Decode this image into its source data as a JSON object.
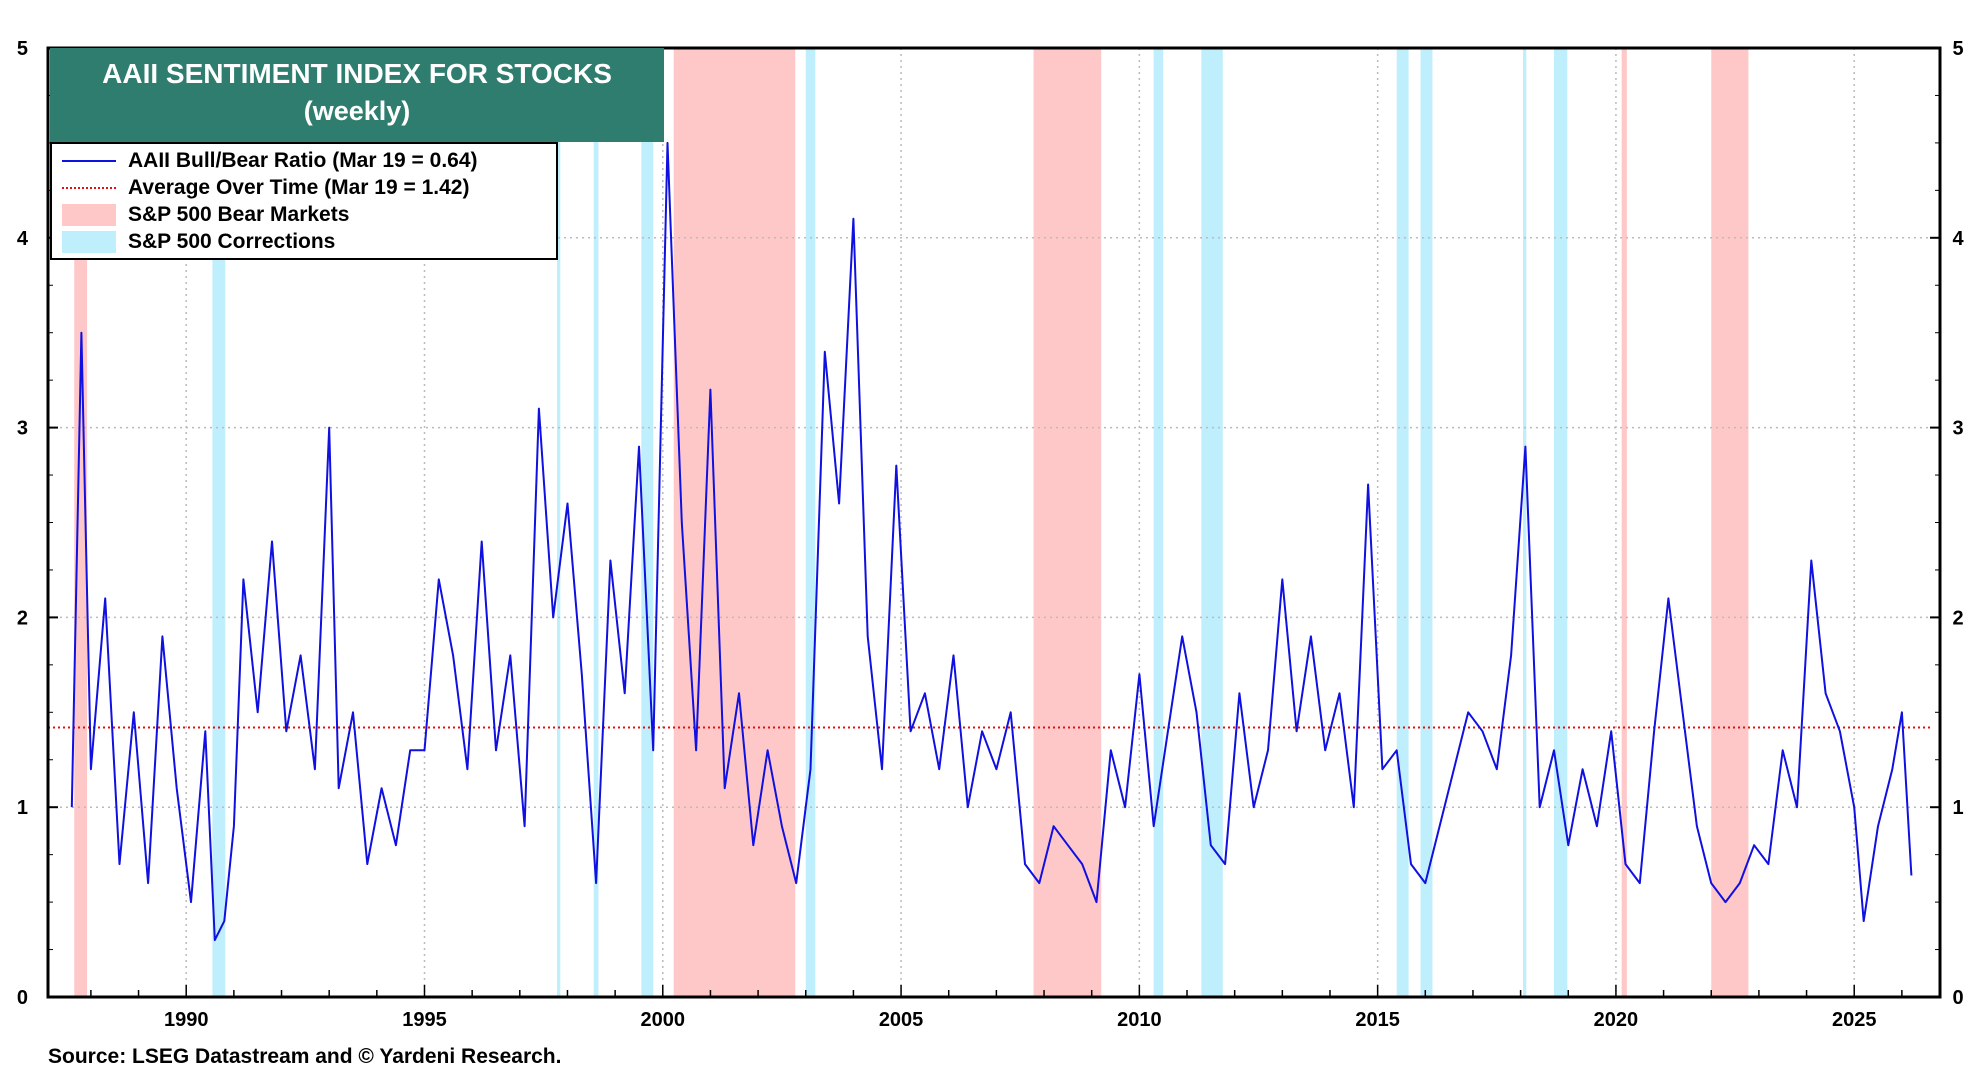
{
  "chart_data": {
    "type": "line",
    "title": "AAII SENTIMENT INDEX FOR STOCKS",
    "subtitle": "(weekly)",
    "xlabel": "",
    "ylabel": "",
    "xlim": [
      1987.1,
      2026.8
    ],
    "ylim": [
      0,
      5
    ],
    "y_ticks": [
      0,
      1,
      2,
      3,
      4,
      5
    ],
    "x_ticks": [
      1990,
      1995,
      2000,
      2005,
      2010,
      2015,
      2020,
      2025
    ],
    "grid": true,
    "legend_position": "top-left",
    "series": [
      {
        "name": "AAII Bull/Bear Ratio (Mar 19 = 0.64)",
        "color": "#1010e0",
        "x": [
          1987.6,
          1987.8,
          1988.0,
          1988.3,
          1988.6,
          1988.9,
          1989.2,
          1989.5,
          1989.8,
          1990.1,
          1990.4,
          1990.6,
          1990.8,
          1991.0,
          1991.2,
          1991.5,
          1991.8,
          1992.1,
          1992.4,
          1992.7,
          1993.0,
          1993.2,
          1993.5,
          1993.8,
          1994.1,
          1994.4,
          1994.7,
          1995.0,
          1995.3,
          1995.6,
          1995.9,
          1996.2,
          1996.5,
          1996.8,
          1997.1,
          1997.4,
          1997.7,
          1998.0,
          1998.3,
          1998.6,
          1998.9,
          1999.2,
          1999.5,
          1999.8,
          2000.1,
          2000.4,
          2000.7,
          2001.0,
          2001.3,
          2001.6,
          2001.9,
          2002.2,
          2002.5,
          2002.8,
          2003.1,
          2003.4,
          2003.7,
          2004.0,
          2004.3,
          2004.6,
          2004.9,
          2005.2,
          2005.5,
          2005.8,
          2006.1,
          2006.4,
          2006.7,
          2007.0,
          2007.3,
          2007.6,
          2007.9,
          2008.2,
          2008.5,
          2008.8,
          2009.1,
          2009.4,
          2009.7,
          2010.0,
          2010.3,
          2010.6,
          2010.9,
          2011.2,
          2011.5,
          2011.8,
          2012.1,
          2012.4,
          2012.7,
          2013.0,
          2013.3,
          2013.6,
          2013.9,
          2014.2,
          2014.5,
          2014.8,
          2015.1,
          2015.4,
          2015.7,
          2016.0,
          2016.3,
          2016.6,
          2016.9,
          2017.2,
          2017.5,
          2017.8,
          2018.1,
          2018.4,
          2018.7,
          2019.0,
          2019.3,
          2019.6,
          2019.9,
          2020.2,
          2020.5,
          2020.8,
          2021.1,
          2021.4,
          2021.7,
          2022.0,
          2022.3,
          2022.6,
          2022.9,
          2023.2,
          2023.5,
          2023.8,
          2024.1,
          2024.4,
          2024.7,
          2025.0,
          2025.2,
          2025.5,
          2025.8,
          2026.0,
          2026.2
        ],
        "y": [
          1.0,
          3.5,
          1.2,
          2.1,
          0.7,
          1.5,
          0.6,
          1.9,
          1.1,
          0.5,
          1.4,
          0.3,
          0.4,
          0.9,
          2.2,
          1.5,
          2.4,
          1.4,
          1.8,
          1.2,
          3.0,
          1.1,
          1.5,
          0.7,
          1.1,
          0.8,
          1.3,
          1.3,
          2.2,
          1.8,
          1.2,
          2.4,
          1.3,
          1.8,
          0.9,
          3.1,
          2.0,
          2.6,
          1.7,
          0.6,
          2.3,
          1.6,
          2.9,
          1.3,
          4.5,
          2.5,
          1.3,
          3.2,
          1.1,
          1.6,
          0.8,
          1.3,
          0.9,
          0.6,
          1.2,
          3.4,
          2.6,
          4.1,
          1.9,
          1.2,
          2.8,
          1.4,
          1.6,
          1.2,
          1.8,
          1.0,
          1.4,
          1.2,
          1.5,
          0.7,
          0.6,
          0.9,
          0.8,
          0.7,
          0.5,
          1.3,
          1.0,
          1.7,
          0.9,
          1.4,
          1.9,
          1.5,
          0.8,
          0.7,
          1.6,
          1.0,
          1.3,
          2.2,
          1.4,
          1.9,
          1.3,
          1.6,
          1.0,
          2.7,
          1.2,
          1.3,
          0.7,
          0.6,
          0.9,
          1.2,
          1.5,
          1.4,
          1.2,
          1.8,
          2.9,
          1.0,
          1.3,
          0.8,
          1.2,
          0.9,
          1.4,
          0.7,
          0.6,
          1.4,
          2.1,
          1.5,
          0.9,
          0.6,
          0.5,
          0.6,
          0.8,
          0.7,
          1.3,
          1.0,
          2.3,
          1.6,
          1.4,
          1.0,
          0.4,
          0.9,
          1.2,
          1.5,
          0.64
        ]
      },
      {
        "name": "Average Over Time (Mar 19 = 1.42)",
        "color": "#e01010",
        "value": 1.42
      }
    ],
    "shaded_periods": [
      {
        "name": "S&P 500 Bear Markets",
        "color": "#ffc8c8",
        "ranges": [
          [
            1987.65,
            1987.92
          ],
          [
            2000.23,
            2002.78
          ],
          [
            2007.78,
            2009.2
          ],
          [
            2020.12,
            2020.23
          ],
          [
            2022.0,
            2022.78
          ]
        ]
      },
      {
        "name": "S&P 500 Corrections",
        "color": "#bfeefc",
        "ranges": [
          [
            1990.55,
            1990.82
          ],
          [
            1997.78,
            1997.85
          ],
          [
            1998.55,
            1998.65
          ],
          [
            1999.55,
            1999.8
          ],
          [
            2003.0,
            2003.2
          ],
          [
            2010.3,
            2010.5
          ],
          [
            2011.3,
            2011.75
          ],
          [
            2015.4,
            2015.65
          ],
          [
            2015.9,
            2016.15
          ],
          [
            2018.05,
            2018.12
          ],
          [
            2018.7,
            2018.98
          ]
        ]
      }
    ],
    "annotation": "Source: LSEG Datastream and © Yardeni Research."
  },
  "legend": {
    "bull_bear": "AAII Bull/Bear Ratio (Mar 19 = 0.64)",
    "average": "Average Over Time (Mar 19 = 1.42)",
    "bear": "S&P 500 Bear Markets",
    "corrections": "S&P 500 Corrections"
  },
  "header": {
    "title_line1": "AAII SENTIMENT INDEX FOR STOCKS",
    "title_line2": "(weekly)"
  },
  "footer": {
    "source": "Source: LSEG Datastream and © Yardeni Research."
  },
  "colors": {
    "title_bg": "#2e7d6e",
    "series": "#1010e0",
    "average": "#e01010",
    "bear": "#ffc8c8",
    "correction": "#bfeefc"
  }
}
